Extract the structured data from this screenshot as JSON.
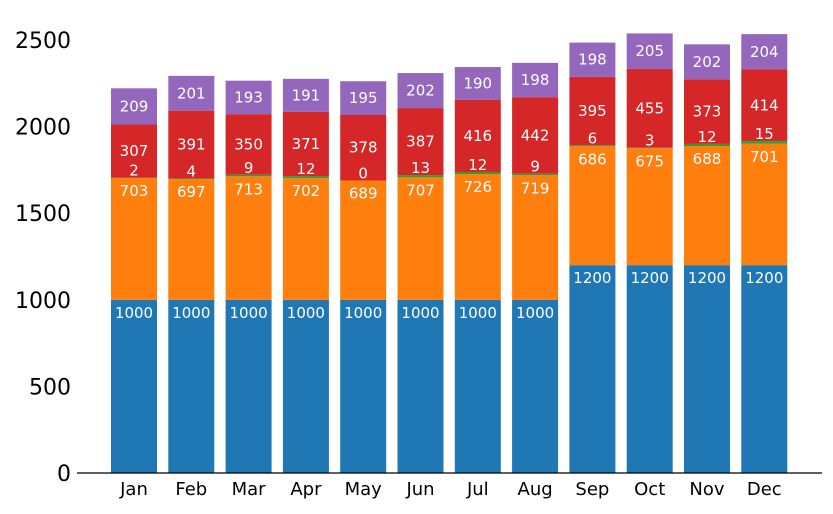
{
  "chart_data": {
    "type": "bar",
    "stacked": true,
    "categories": [
      "Jan",
      "Feb",
      "Mar",
      "Apr",
      "May",
      "Jun",
      "Jul",
      "Aug",
      "Sep",
      "Oct",
      "Nov",
      "Dec"
    ],
    "series": [
      {
        "color": "#1f77b4",
        "values": [
          1000,
          1000,
          1000,
          1000,
          1000,
          1000,
          1000,
          1000,
          1200,
          1200,
          1200,
          1200
        ]
      },
      {
        "color": "#ff7f0e",
        "values": [
          703,
          697,
          713,
          702,
          689,
          707,
          726,
          719,
          686,
          675,
          688,
          701
        ]
      },
      {
        "color": "#2ca02c",
        "values": [
          2,
          4,
          9,
          12,
          0,
          13,
          12,
          9,
          6,
          3,
          12,
          15
        ]
      },
      {
        "color": "#d62728",
        "values": [
          307,
          391,
          350,
          371,
          378,
          387,
          416,
          442,
          395,
          455,
          373,
          414
        ]
      },
      {
        "color": "#9467bd",
        "values": [
          209,
          201,
          193,
          191,
          195,
          202,
          190,
          198,
          198,
          205,
          202,
          204
        ]
      }
    ],
    "yticks": [
      "0",
      "500",
      "1000",
      "1500",
      "2000",
      "2500"
    ],
    "ylim": [
      0,
      2650
    ],
    "title": "",
    "xlabel": "",
    "ylabel": "",
    "grid": false,
    "legend": "none"
  }
}
